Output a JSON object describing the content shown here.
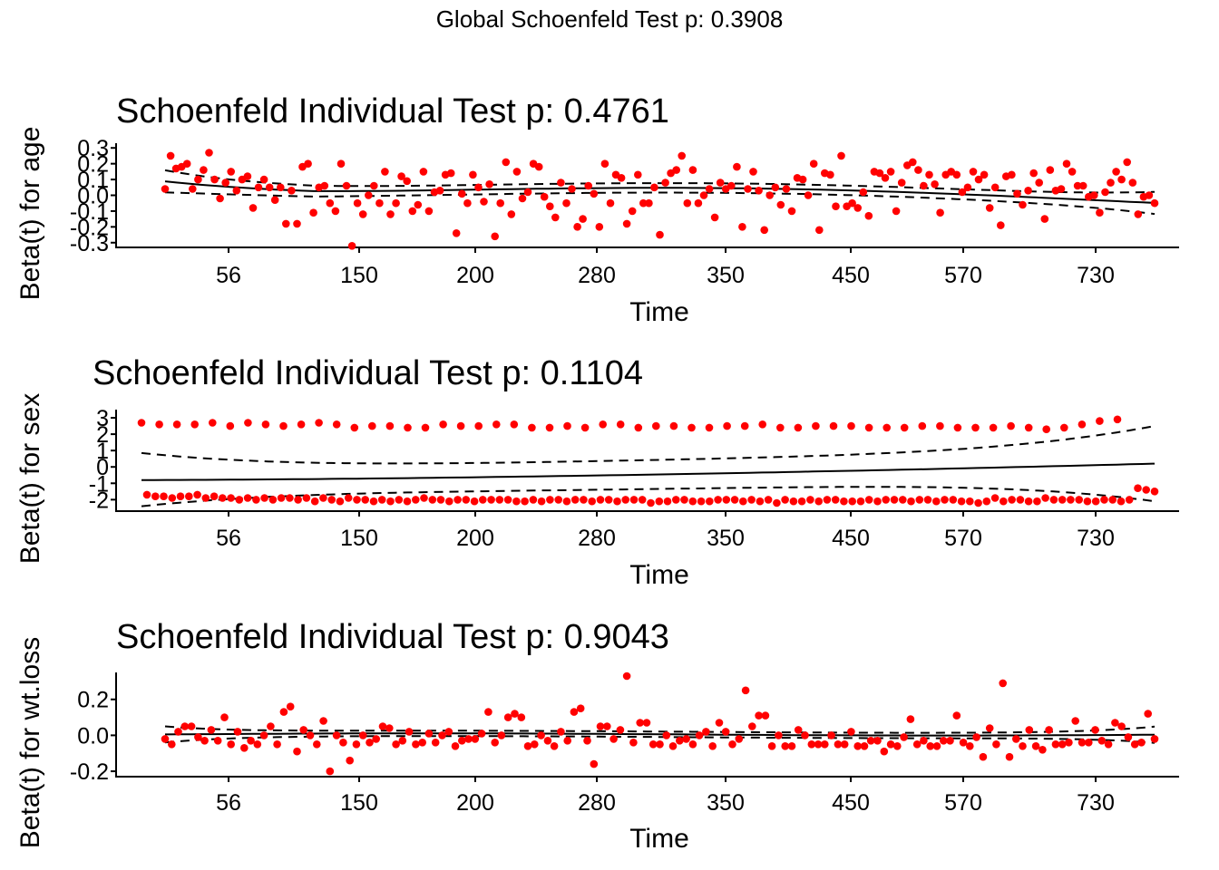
{
  "global_title": "Global Schoenfeld Test p: 0.3908",
  "chart_data": [
    {
      "type": "scatter",
      "title": "Schoenfeld Individual Test p: 0.4761",
      "xlabel": "Time",
      "ylabel": "Beta(t) for age",
      "x_tick_labels": [
        "56",
        "150",
        "200",
        "280",
        "350",
        "450",
        "570",
        "730"
      ],
      "y_ticks": [
        -0.3,
        -0.2,
        -0.1,
        0.0,
        0.1,
        0.2,
        0.3
      ],
      "y_tick_labels": [
        "-0.3",
        "-0.2",
        "-0.1",
        "0.0",
        "0.1",
        "0.2",
        "0.3"
      ],
      "ylim": [
        -0.33,
        0.33
      ],
      "point_color": "#ff0000",
      "points_y": [
        0.04,
        0.25,
        0.17,
        0.18,
        0.2,
        0.04,
        0.1,
        0.16,
        0.27,
        0.1,
        -0.02,
        0.08,
        0.15,
        0.03,
        0.1,
        0.12,
        -0.08,
        0.05,
        0.1,
        0.05,
        -0.03,
        0.05,
        -0.18,
        0.03,
        -0.18,
        0.18,
        0.2,
        -0.11,
        0.05,
        0.06,
        -0.05,
        -0.1,
        0.2,
        0.06,
        -0.32,
        -0.05,
        -0.12,
        0.0,
        0.06,
        -0.05,
        0.15,
        -0.12,
        -0.05,
        0.12,
        0.09,
        -0.1,
        -0.06,
        0.15,
        -0.1,
        0.02,
        0.03,
        0.13,
        0.14,
        -0.24,
        0.01,
        -0.05,
        0.13,
        0.05,
        -0.04,
        0.07,
        -0.26,
        -0.05,
        0.21,
        -0.12,
        0.15,
        -0.02,
        0.02,
        0.2,
        0.18,
        -0.01,
        -0.07,
        -0.14,
        0.08,
        -0.05,
        0.04,
        -0.2,
        -0.15,
        0.06,
        0.01,
        -0.2,
        0.2,
        -0.05,
        0.13,
        0.11,
        -0.18,
        -0.1,
        0.13,
        -0.05,
        -0.05,
        0.05,
        -0.25,
        0.08,
        0.14,
        0.16,
        0.25,
        -0.05,
        0.16,
        -0.05,
        0.0,
        0.04,
        -0.14,
        0.08,
        0.04,
        0.06,
        0.18,
        -0.2,
        0.04,
        0.15,
        0.03,
        -0.22,
        0.0,
        0.05,
        -0.06,
        0.04,
        -0.1,
        0.11,
        0.1,
        0.0,
        0.2,
        -0.22,
        0.14,
        0.13,
        -0.07,
        0.25,
        -0.07,
        -0.05,
        -0.08,
        0.02,
        -0.13,
        0.15,
        0.14,
        0.11,
        0.15,
        -0.1,
        0.08,
        0.19,
        0.21,
        0.16,
        0.06,
        0.13,
        0.07,
        -0.11,
        0.13,
        0.15,
        0.13,
        0.02,
        0.05,
        0.15,
        0.1,
        0.13,
        -0.08,
        0.05,
        -0.19,
        0.12,
        0.13,
        0.01,
        -0.06,
        0.03,
        0.14,
        0.08,
        -0.15,
        0.16,
        0.03,
        0.04,
        0.2,
        0.15,
        0.06,
        0.06,
        -0.01,
        0.0,
        -0.11,
        0.02,
        0.08,
        0.15,
        0.1,
        0.21,
        0.08,
        -0.12,
        -0.01,
        0.0,
        -0.05
      ]
    },
    {
      "type": "scatter",
      "title": "Schoenfeld Individual Test p: 0.1104",
      "xlabel": "Time",
      "ylabel": "Beta(t) for sex",
      "x_tick_labels": [
        "56",
        "150",
        "200",
        "280",
        "350",
        "450",
        "570",
        "730"
      ],
      "y_ticks": [
        -2,
        -1,
        0,
        1,
        2,
        3
      ],
      "y_tick_labels": [
        "-2",
        "-1",
        "0",
        "1",
        "2",
        "3"
      ],
      "ylim": [
        -2.7,
        3.5
      ],
      "point_color": "#ff0000",
      "points_upper": [
        2.7,
        2.6,
        2.6,
        2.6,
        2.7,
        2.5,
        2.7,
        2.6,
        2.5,
        2.6,
        2.7,
        2.6,
        2.4,
        2.5,
        2.5,
        2.4,
        2.4,
        2.6,
        2.5,
        2.5,
        2.6,
        2.6,
        2.4,
        2.4,
        2.5,
        2.4,
        2.6,
        2.6,
        2.4,
        2.5,
        2.5,
        2.4,
        2.4,
        2.5,
        2.5,
        2.6,
        2.4,
        2.4,
        2.5,
        2.5,
        2.5,
        2.4,
        2.4,
        2.4,
        2.5,
        2.5,
        2.4,
        2.4,
        2.4,
        2.5,
        2.4,
        2.3,
        2.4,
        2.6,
        2.8,
        2.9
      ],
      "points_lower": [
        -1.7,
        -1.8,
        -1.8,
        -1.9,
        -1.8,
        -1.8,
        -1.7,
        -1.9,
        -1.8,
        -1.9,
        -1.9,
        -2.0,
        -1.9,
        -2.0,
        -1.9,
        -2.0,
        -1.9,
        -1.9,
        -2.0,
        -1.9,
        -2.1,
        -1.9,
        -2.0,
        -2.1,
        -1.9,
        -2.0,
        -2.0,
        -2.1,
        -2.0,
        -2.1,
        -2.0,
        -2.1,
        -2.0,
        -1.9,
        -2.0,
        -2.0,
        -2.1,
        -2.0,
        -2.0,
        -2.1,
        -2.0,
        -2.0,
        -2.0,
        -2.0,
        -2.1,
        -2.1,
        -2.0,
        -2.1,
        -2.0,
        -2.0,
        -2.1,
        -2.0,
        -2.0,
        -2.1,
        -2.0,
        -2.0,
        -2.1,
        -2.0,
        -2.0,
        -2.0,
        -2.2,
        -2.1,
        -2.1,
        -2.0,
        -2.0,
        -2.1,
        -2.1,
        -2.1,
        -2.0,
        -2.0,
        -2.0,
        -2.1,
        -2.0,
        -2.1,
        -2.0,
        -2.2,
        -2.0,
        -2.1,
        -2.1,
        -2.0,
        -2.1,
        -2.0,
        -2.0,
        -2.1,
        -2.1,
        -2.1,
        -2.0,
        -2.1,
        -2.0,
        -2.0,
        -2.0,
        -2.1,
        -2.0,
        -2.0,
        -2.1,
        -2.0,
        -2.0,
        -2.1,
        -2.1,
        -2.2,
        -2.1,
        -1.9,
        -2.1,
        -2.0,
        -2.0,
        -2.1,
        -2.1,
        -1.9,
        -2.0,
        -2.0,
        -2.0,
        -2.0,
        -2.1,
        -2.1,
        -2.0,
        -2.0,
        -2.1,
        -2.0,
        -1.3,
        -1.4,
        -1.5
      ]
    },
    {
      "type": "scatter",
      "title": "Schoenfeld Individual Test p: 0.9043",
      "xlabel": "Time",
      "ylabel": "Beta(t) for wt.loss",
      "x_tick_labels": [
        "56",
        "150",
        "200",
        "280",
        "350",
        "450",
        "570",
        "730"
      ],
      "y_ticks": [
        -0.2,
        0.0,
        0.2
      ],
      "y_tick_labels": [
        "-0.2",
        "0.0",
        "0.2"
      ],
      "ylim": [
        -0.23,
        0.35
      ],
      "point_color": "#ff0000",
      "points_y": [
        -0.02,
        -0.05,
        0.02,
        0.05,
        0.05,
        -0.01,
        -0.03,
        0.03,
        -0.03,
        0.1,
        -0.05,
        0.02,
        -0.07,
        -0.03,
        -0.05,
        0.0,
        0.05,
        -0.05,
        0.13,
        0.16,
        -0.09,
        0.03,
        0.0,
        -0.05,
        0.08,
        -0.2,
        0.0,
        -0.04,
        -0.14,
        -0.05,
        0.0,
        -0.04,
        -0.02,
        0.05,
        0.04,
        -0.05,
        -0.03,
        0.02,
        -0.05,
        -0.04,
        0.01,
        -0.04,
        0.0,
        0.02,
        -0.06,
        -0.03,
        -0.02,
        -0.02,
        0.01,
        0.13,
        -0.04,
        0.0,
        0.1,
        0.12,
        0.1,
        -0.06,
        -0.05,
        0.0,
        -0.03,
        -0.06,
        0.02,
        -0.03,
        0.13,
        0.15,
        -0.03,
        -0.16,
        0.05,
        0.05,
        -0.02,
        0.03,
        0.33,
        -0.04,
        0.07,
        0.07,
        -0.05,
        -0.05,
        0.0,
        -0.06,
        -0.03,
        -0.02,
        -0.05,
        0.0,
        0.02,
        -0.06,
        0.07,
        0.02,
        -0.05,
        -0.02,
        0.25,
        0.05,
        0.11,
        0.11,
        -0.06,
        0.0,
        -0.06,
        -0.06,
        0.03,
        0.0,
        -0.05,
        -0.05,
        -0.05,
        0.0,
        -0.05,
        -0.05,
        0.02,
        -0.06,
        -0.06,
        -0.03,
        -0.03,
        -0.09,
        -0.05,
        -0.06,
        -0.01,
        0.09,
        -0.05,
        -0.03,
        -0.06,
        -0.06,
        -0.03,
        -0.03,
        0.11,
        -0.04,
        -0.06,
        -0.01,
        -0.12,
        0.04,
        -0.05,
        0.29,
        -0.12,
        -0.02,
        -0.06,
        0.03,
        -0.06,
        -0.08,
        0.03,
        -0.05,
        -0.05,
        -0.04,
        0.08,
        -0.04,
        -0.04,
        0.03,
        -0.03,
        -0.05,
        0.07,
        0.05,
        -0.01,
        -0.05,
        -0.04,
        0.12,
        -0.02
      ]
    }
  ]
}
